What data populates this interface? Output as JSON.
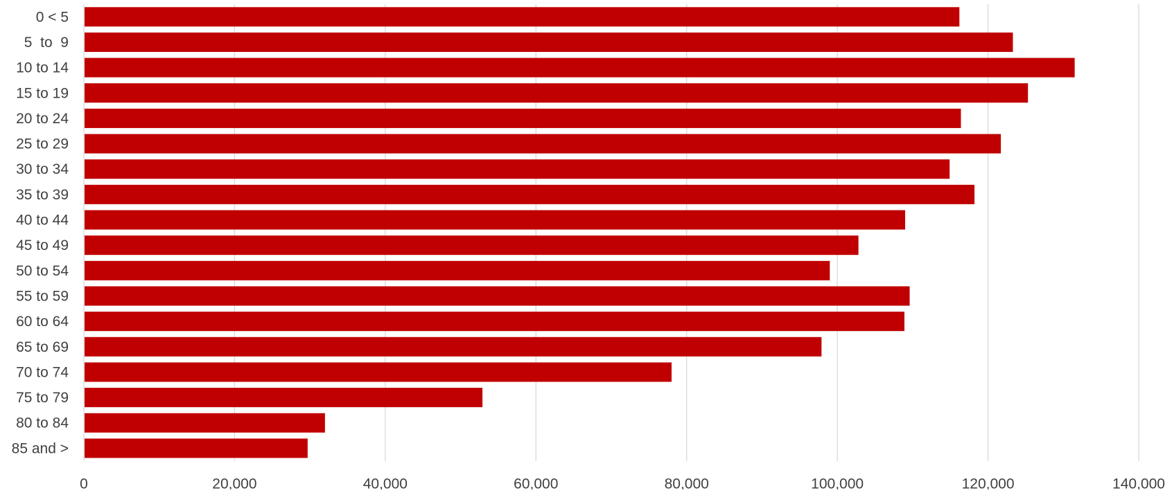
{
  "chart_data": {
    "type": "bar",
    "orientation": "horizontal",
    "title": "",
    "xlabel": "",
    "ylabel": "",
    "categories": [
      "0 < 5",
      "5  to  9",
      "10 to 14",
      "15 to 19",
      "20 to 24",
      "25 to 29",
      "30 to 34",
      "35 to 39",
      "40 to 44",
      "45 to 49",
      "50 to 54",
      "55 to 59",
      "60 to 64",
      "65 to 69",
      "70 to 74",
      "75 to 79",
      "80 to 84",
      "85 and >"
    ],
    "values": [
      116200,
      123300,
      131500,
      125300,
      116400,
      121700,
      114900,
      118200,
      109000,
      102800,
      99000,
      109600,
      108900,
      97900,
      78000,
      52900,
      32000,
      29700
    ],
    "xlim": [
      0,
      140000
    ],
    "x_ticks": [
      0,
      20000,
      40000,
      60000,
      80000,
      100000,
      120000,
      140000
    ],
    "x_tick_labels": [
      "0",
      "20,000",
      "40,000",
      "60,000",
      "80,000",
      "100,000",
      "120,000",
      "140,000"
    ],
    "grid": "vertical",
    "legend": "none",
    "bar_color": "#C00000",
    "grid_color": "#D9D9D9",
    "text_color": "#404040"
  }
}
